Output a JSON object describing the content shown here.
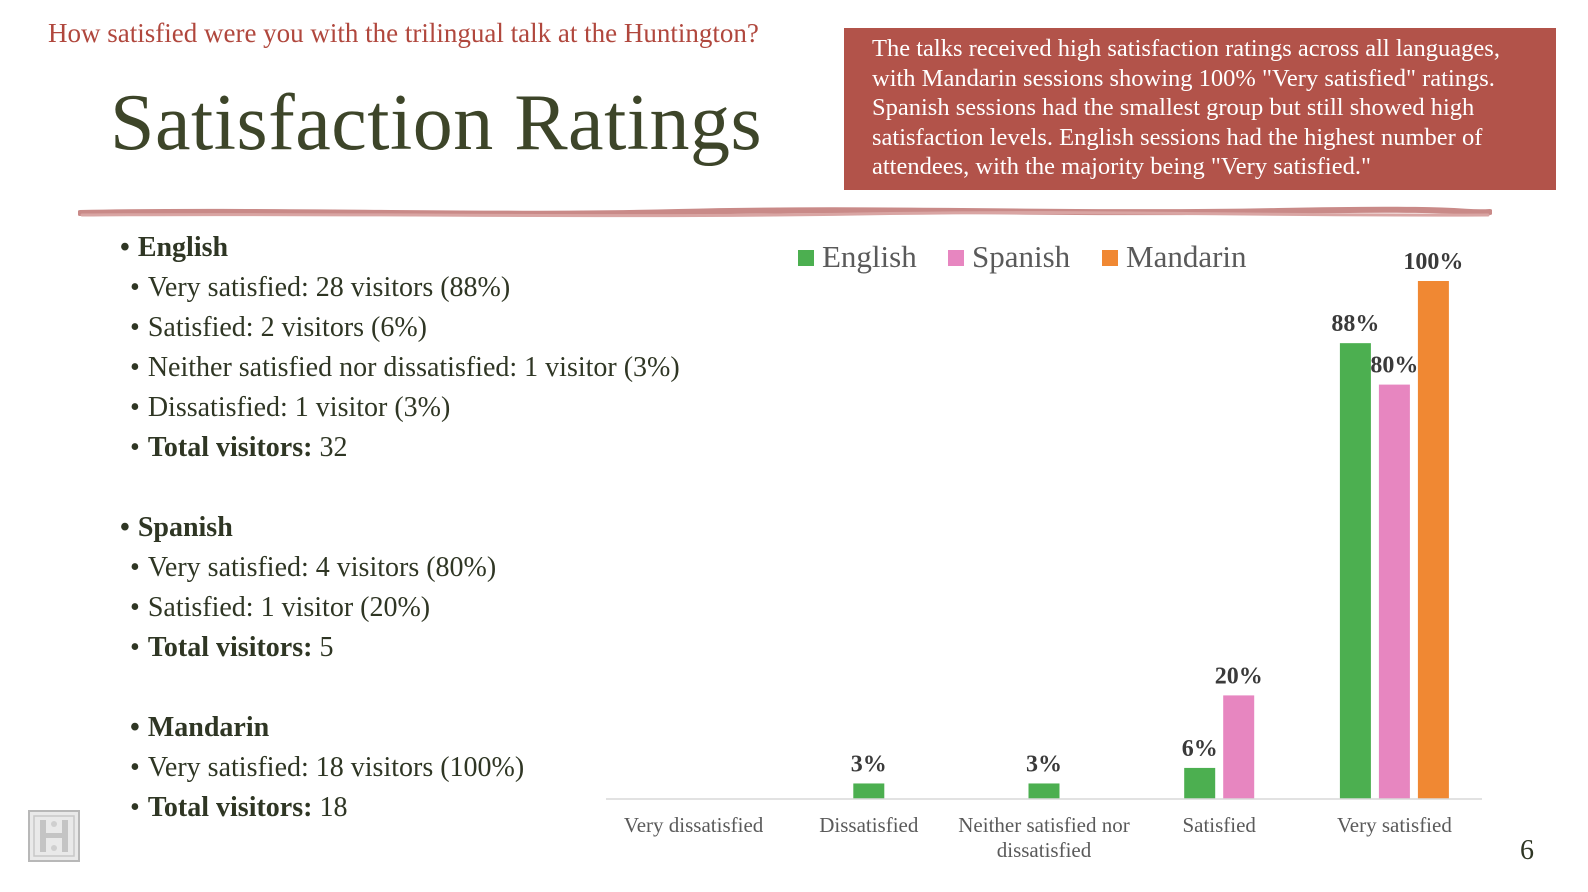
{
  "slide": {
    "question": "How satisfied were you with the trilingual talk at the Huntington?",
    "title": "Satisfaction Ratings",
    "summary": "The  talks received high satisfaction ratings across all languages, with Mandarin sessions showing 100% \"Very satisfied\" ratings. Spanish sessions had the smallest group but still showed high satisfaction levels. English sessions had the highest number of attendees, with the majority being \"Very satisfied.\"",
    "page_number": "6"
  },
  "stats": {
    "english": {
      "heading": "English",
      "lines": [
        "Very satisfied: 28 visitors (88%)",
        "Satisfied: 2 visitors (6%)",
        "Neither satisfied nor dissatisfied: 1 visitor (3%)",
        "Dissatisfied: 1 visitor (3%)"
      ],
      "total_label": "Total visitors:",
      "total_value": "32"
    },
    "spanish": {
      "heading": "Spanish",
      "lines": [
        "Very satisfied: 4 visitors (80%)",
        "Satisfied: 1 visitor (20%)"
      ],
      "total_label": "Total visitors:",
      "total_value": "5"
    },
    "mandarin": {
      "heading": "Mandarin",
      "lines": [
        "Very satisfied: 18 visitors (100%)"
      ],
      "total_label": "Total visitors:",
      "total_value": "18"
    }
  },
  "colors": {
    "english": "#4caf50",
    "spanish": "#e786c0",
    "mandarin": "#f08833",
    "accent": "#b2534a"
  },
  "chart_data": {
    "type": "bar",
    "categories": [
      "Very dissatisfied",
      "Dissatisfied",
      "Neither satisfied nor dissatisfied",
      "Satisfied",
      "Very satisfied"
    ],
    "series": [
      {
        "name": "English",
        "values": [
          null,
          3,
          3,
          6,
          88
        ],
        "labels": [
          "",
          "3%",
          "3%",
          "6%",
          "88%"
        ]
      },
      {
        "name": "Spanish",
        "values": [
          null,
          null,
          null,
          20,
          80
        ],
        "labels": [
          "",
          "",
          "",
          "20%",
          "80%"
        ]
      },
      {
        "name": "Mandarin",
        "values": [
          null,
          null,
          null,
          null,
          100
        ],
        "labels": [
          "",
          "",
          "",
          "",
          "100%"
        ]
      }
    ],
    "ylim": [
      0,
      100
    ],
    "unit": "%",
    "legend": "top",
    "grid": false
  }
}
